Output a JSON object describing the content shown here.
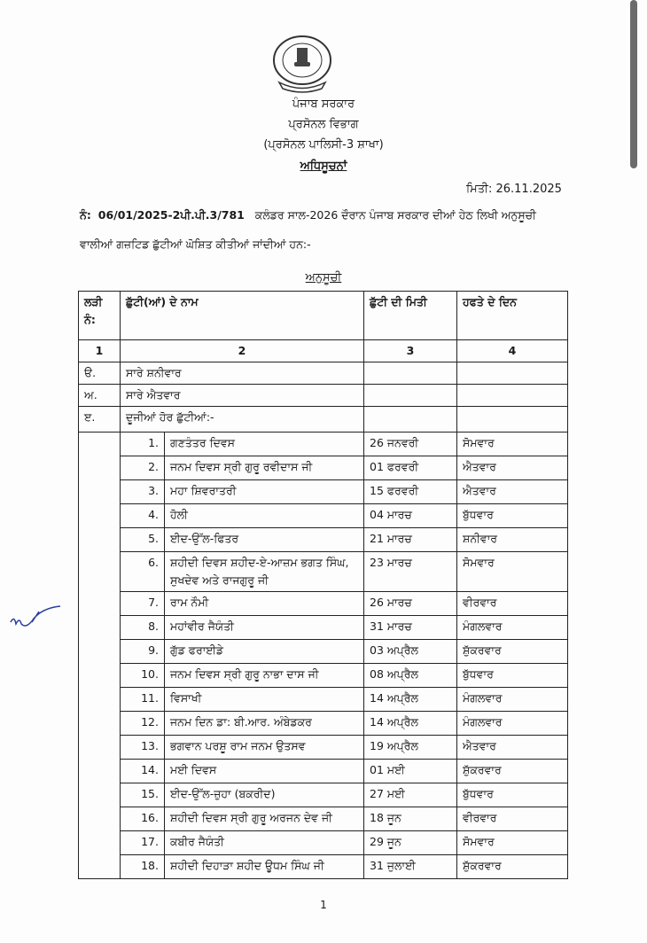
{
  "header": {
    "org": "ਪੰਜਾਬ ਸਰਕਾਰ",
    "dept": "ਪ੍ਰਸੋਨਲ ਵਿਭਾਗ",
    "branch": "(ਪ੍ਰਸੋਨਲ ਪਾਲਿਸੀ-3 ਸ਼ਾਖਾ)",
    "title": "ਅਧਿਸੂਚਨਾਂ",
    "date": "ਮਿਤੀ: 26.11.2025",
    "ref_label": "ਨੰ:",
    "ref_no": "06/01/2025-2ਪੀ.ਪੀ.3/781",
    "intro_1": "ਕਲੰਡਰ ਸਾਲ-2026 ਦੌਰਾਨ ਪੰਜਾਬ ਸਰਕਾਰ ਦੀਆਂ ਹੇਠ ਲਿਖੀ ਅਨੁਸੂਚੀ",
    "intro_2": "ਵਾਲੀਆਂ ਗਜ਼ਟਿਡ ਛੁੱਟੀਆਂ ਘੋਸ਼ਿਤ ਕੀਤੀਆਂ ਜਾਂਦੀਆਂ ਹਨ:-"
  },
  "schedule_title": "ਅਨੁਸੂਚੀ",
  "table": {
    "headers": [
      "ਲੜੀ ਨੰ:",
      "ਛੁੱਟੀ(ਆਂ) ਦੇ ਨਾਮ",
      "ਛੁੱਟੀ ਦੀ ਮਿਤੀ",
      "ਹਫਤੇ ਦੇ ਦਿਨ"
    ],
    "col_numbers": [
      "1",
      "2",
      "3",
      "4"
    ],
    "sections": [
      {
        "label": "ੳ.",
        "text": "ਸਾਰੇ ਸ਼ਨੀਵਾਰ"
      },
      {
        "label": "ਅ.",
        "text": "ਸਾਰੇ ਐਤਵਾਰ"
      },
      {
        "label": "ੲ.",
        "text": "ਦੂਜੀਆਂ ਹੋਰ ਛੁੱਟੀਆਂ:-"
      }
    ],
    "holidays": [
      {
        "no": "1.",
        "name": "ਗਣਤੰਤਰ ਦਿਵਸ",
        "date": "26 ਜਨਵਰੀ",
        "day": "ਸੋਮਵਾਰ"
      },
      {
        "no": "2.",
        "name": "ਜਨਮ ਦਿਵਸ ਸ੍ਰੀ ਗੁਰੂ ਰਵੀਦਾਸ ਜੀ",
        "date": "01 ਫਰਵਰੀ",
        "day": "ਐਤਵਾਰ"
      },
      {
        "no": "3.",
        "name": "ਮਹਾ ਸ਼ਿਵਰਾਤਰੀ",
        "date": "15 ਫਰਵਰੀ",
        "day": "ਐਤਵਾਰ"
      },
      {
        "no": "4.",
        "name": "ਹੋਲੀ",
        "date": "04 ਮਾਰਚ",
        "day": "ਬੁੱਧਵਾਰ"
      },
      {
        "no": "5.",
        "name": "ਈਦ-ਉੱਲ-ਫਿਤਰ",
        "date": "21 ਮਾਰਚ",
        "day": "ਸ਼ਨੀਵਾਰ"
      },
      {
        "no": "6.",
        "name": "ਸ਼ਹੀਦੀ ਦਿਵਸ ਸ਼ਹੀਦ-ਏ-ਆਜ਼ਮ ਭਗਤ ਸਿੰਘ, ਸੁਖਦੇਵ ਅਤੇ ਰਾਜਗੁਰੂ ਜੀ",
        "date": "23 ਮਾਰਚ",
        "day": "ਸੋਮਵਾਰ"
      },
      {
        "no": "7.",
        "name": "ਰਾਮ ਨੌਮੀ",
        "date": "26 ਮਾਰਚ",
        "day": "ਵੀਰਵਾਰ"
      },
      {
        "no": "8.",
        "name": "ਮਹਾਂਵੀਰ ਜੈਯੰਤੀ",
        "date": "31 ਮਾਰਚ",
        "day": "ਮੰਗਲਵਾਰ"
      },
      {
        "no": "9.",
        "name": "ਗੁੱਡ ਫਰਾਈਡੇ",
        "date": "03 ਅਪ੍ਰੈਲ",
        "day": "ਸ਼ੁੱਕਰਵਾਰ"
      },
      {
        "no": "10.",
        "name": "ਜਨਮ ਦਿਵਸ ਸ੍ਰੀ ਗੁਰੂ ਨਾਭਾ ਦਾਸ ਜੀ",
        "date": "08 ਅਪ੍ਰੈਲ",
        "day": "ਬੁੱਧਵਾਰ"
      },
      {
        "no": "11.",
        "name": "ਵਿਸਾਖੀ",
        "date": "14 ਅਪ੍ਰੈਲ",
        "day": "ਮੰਗਲਵਾਰ"
      },
      {
        "no": "12.",
        "name": "ਜਨਮ ਦਿਨ ਡਾ: ਬੀ.ਆਰ. ਅੰਬੇਡਕਰ",
        "date": "14 ਅਪ੍ਰੈਲ",
        "day": "ਮੰਗਲਵਾਰ"
      },
      {
        "no": "13.",
        "name": "ਭਗਵਾਨ ਪਰਸ਼ੂ ਰਾਮ ਜਨਮ ਉਤਸਵ",
        "date": "19 ਅਪ੍ਰੈਲ",
        "day": "ਐਤਵਾਰ"
      },
      {
        "no": "14.",
        "name": "ਮਈ ਦਿਵਸ",
        "date": "01 ਮਈ",
        "day": "ਸ਼ੁੱਕਰਵਾਰ"
      },
      {
        "no": "15.",
        "name": "ਈਦ-ਉੱਲ-ਜ਼ੁਹਾ (ਬਕਰੀਦ)",
        "date": "27 ਮਈ",
        "day": "ਬੁੱਧਵਾਰ"
      },
      {
        "no": "16.",
        "name": "ਸ਼ਹੀਦੀ ਦਿਵਸ ਸ੍ਰੀ ਗੁਰੂ ਅਰਜਨ ਦੇਵ ਜੀ",
        "date": "18 ਜੂਨ",
        "day": "ਵੀਰਵਾਰ"
      },
      {
        "no": "17.",
        "name": "ਕਬੀਰ ਜੈਯੰਤੀ",
        "date": "29 ਜੂਨ",
        "day": "ਸੋਮਵਾਰ"
      },
      {
        "no": "18.",
        "name": "ਸ਼ਹੀਦੀ ਦਿਹਾੜਾ ਸ਼ਹੀਦ ਊਧਮ ਸਿੰਘ ਜੀ",
        "date": "31 ਜੁਲਾਈ",
        "day": "ਸ਼ੁੱਕਰਵਾਰ"
      }
    ]
  },
  "page_number": "1",
  "colors": {
    "ink": "#1a1a1a",
    "signature": "#2a3f9e",
    "scrollbar": "#6b6b6b"
  }
}
